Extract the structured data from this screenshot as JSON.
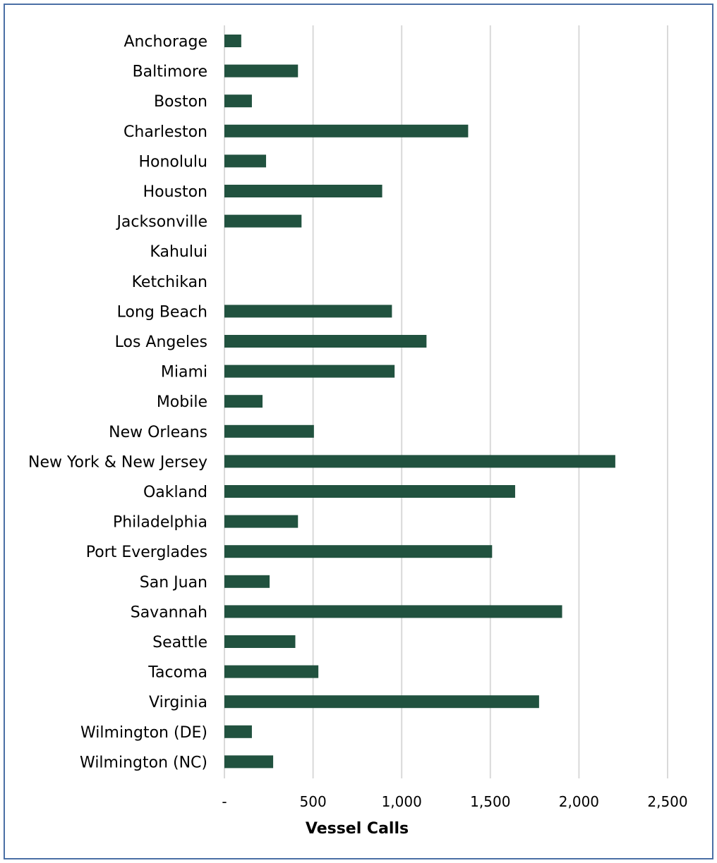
{
  "chart_data": {
    "type": "bar",
    "orientation": "horizontal",
    "title": "",
    "xlabel": "Vessel Calls",
    "ylabel": "",
    "xlim": [
      0,
      2500
    ],
    "x_ticks": [
      0,
      500,
      1000,
      1500,
      2000,
      2500
    ],
    "x_tick_labels": [
      "-",
      "500",
      "1,000",
      "1,500",
      "2,000",
      "2,500"
    ],
    "grid": "vertical",
    "legend": "none",
    "bar_color": "#21523f",
    "categories": [
      "Anchorage",
      "Baltimore",
      "Boston",
      "Charleston",
      "Honolulu",
      "Houston",
      "Jacksonville",
      "Kahului",
      "Ketchikan",
      "Long Beach",
      "Los Angeles",
      "Miami",
      "Mobile",
      "New Orleans",
      "New York & New Jersey",
      "Oakland",
      "Philadelphia",
      "Port Everglades",
      "San Juan",
      "Savannah",
      "Seattle",
      "Tacoma",
      "Virginia",
      "Wilmington (DE)",
      "Wilmington (NC)"
    ],
    "values": [
      95,
      415,
      155,
      1375,
      235,
      890,
      435,
      0,
      0,
      945,
      1140,
      960,
      215,
      505,
      2205,
      1640,
      415,
      1510,
      255,
      1905,
      400,
      530,
      1775,
      155,
      275
    ]
  }
}
